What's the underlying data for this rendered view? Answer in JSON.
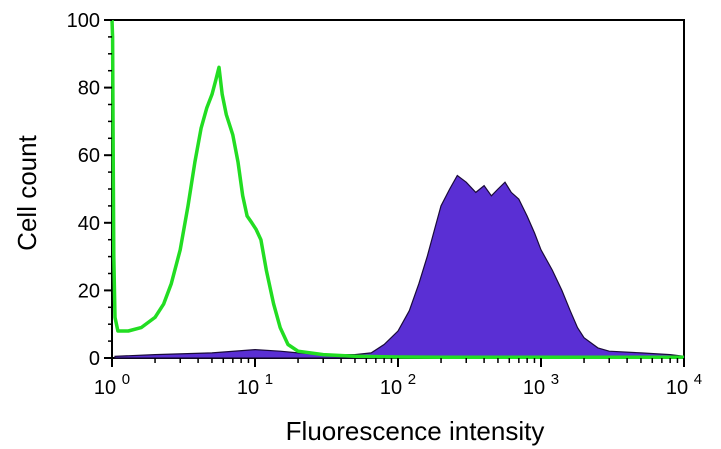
{
  "chart_data": {
    "type": "area",
    "title": "",
    "xlabel": "Fluorescence intensity",
    "ylabel": "Cell count",
    "x_scale": "log",
    "xlim": [
      1,
      10000
    ],
    "ylim": [
      0,
      100
    ],
    "x_ticks": [
      {
        "base": "10",
        "exp": "0",
        "value": 1
      },
      {
        "base": "10",
        "exp": "1",
        "value": 10
      },
      {
        "base": "10",
        "exp": "2",
        "value": 100
      },
      {
        "base": "10",
        "exp": "3",
        "value": 1000
      },
      {
        "base": "10",
        "exp": "4",
        "value": 10000
      }
    ],
    "y_ticks": [
      "0",
      "20",
      "40",
      "60",
      "80",
      "100"
    ],
    "grid": false,
    "legend": "none",
    "series": [
      {
        "style": "line",
        "color": "#22dd22",
        "points": [
          [
            1.0,
            100
          ],
          [
            1.01,
            95
          ],
          [
            1.02,
            60
          ],
          [
            1.03,
            30
          ],
          [
            1.05,
            12
          ],
          [
            1.1,
            8
          ],
          [
            1.3,
            8
          ],
          [
            1.6,
            9
          ],
          [
            2.0,
            12
          ],
          [
            2.3,
            16
          ],
          [
            2.6,
            22
          ],
          [
            3.0,
            32
          ],
          [
            3.4,
            45
          ],
          [
            3.8,
            58
          ],
          [
            4.2,
            68
          ],
          [
            4.6,
            74
          ],
          [
            5.0,
            78
          ],
          [
            5.3,
            82
          ],
          [
            5.6,
            86
          ],
          [
            5.9,
            78
          ],
          [
            6.3,
            72
          ],
          [
            7.0,
            66
          ],
          [
            7.6,
            58
          ],
          [
            8.2,
            48
          ],
          [
            8.8,
            42
          ],
          [
            9.5,
            40
          ],
          [
            10.2,
            38
          ],
          [
            11.0,
            35
          ],
          [
            12.0,
            26
          ],
          [
            13.5,
            16
          ],
          [
            15.0,
            9
          ],
          [
            17.0,
            4
          ],
          [
            20.0,
            2
          ],
          [
            30.0,
            1
          ],
          [
            50.0,
            0.5
          ],
          [
            100.0,
            0.3
          ],
          [
            200.0,
            0.2
          ],
          [
            1000.0,
            0.2
          ],
          [
            10000.0,
            0.2
          ]
        ]
      },
      {
        "style": "filled",
        "color": "#5a2fd4",
        "points": [
          [
            1.05,
            0.5
          ],
          [
            2.0,
            1
          ],
          [
            5.0,
            1.5
          ],
          [
            10.0,
            2.5
          ],
          [
            15.0,
            2
          ],
          [
            20.0,
            1.5
          ],
          [
            30.0,
            1
          ],
          [
            50.0,
            1
          ],
          [
            65.0,
            1.5
          ],
          [
            80.0,
            4
          ],
          [
            100.0,
            8
          ],
          [
            120.0,
            14
          ],
          [
            140.0,
            22
          ],
          [
            160.0,
            30
          ],
          [
            180.0,
            38
          ],
          [
            200.0,
            45
          ],
          [
            230.0,
            50
          ],
          [
            260.0,
            54
          ],
          [
            300.0,
            52
          ],
          [
            350.0,
            49
          ],
          [
            400.0,
            51
          ],
          [
            450.0,
            48
          ],
          [
            500.0,
            50
          ],
          [
            560.0,
            52
          ],
          [
            620.0,
            49
          ],
          [
            700.0,
            47
          ],
          [
            800.0,
            42
          ],
          [
            900.0,
            37
          ],
          [
            1000.0,
            32
          ],
          [
            1200.0,
            26
          ],
          [
            1400.0,
            20
          ],
          [
            1600.0,
            14
          ],
          [
            1800.0,
            9
          ],
          [
            2000.0,
            6
          ],
          [
            2500.0,
            3
          ],
          [
            3000.0,
            2
          ],
          [
            5000.0,
            1.5
          ],
          [
            8000.0,
            1
          ],
          [
            10000.0,
            0.5
          ]
        ]
      }
    ]
  }
}
